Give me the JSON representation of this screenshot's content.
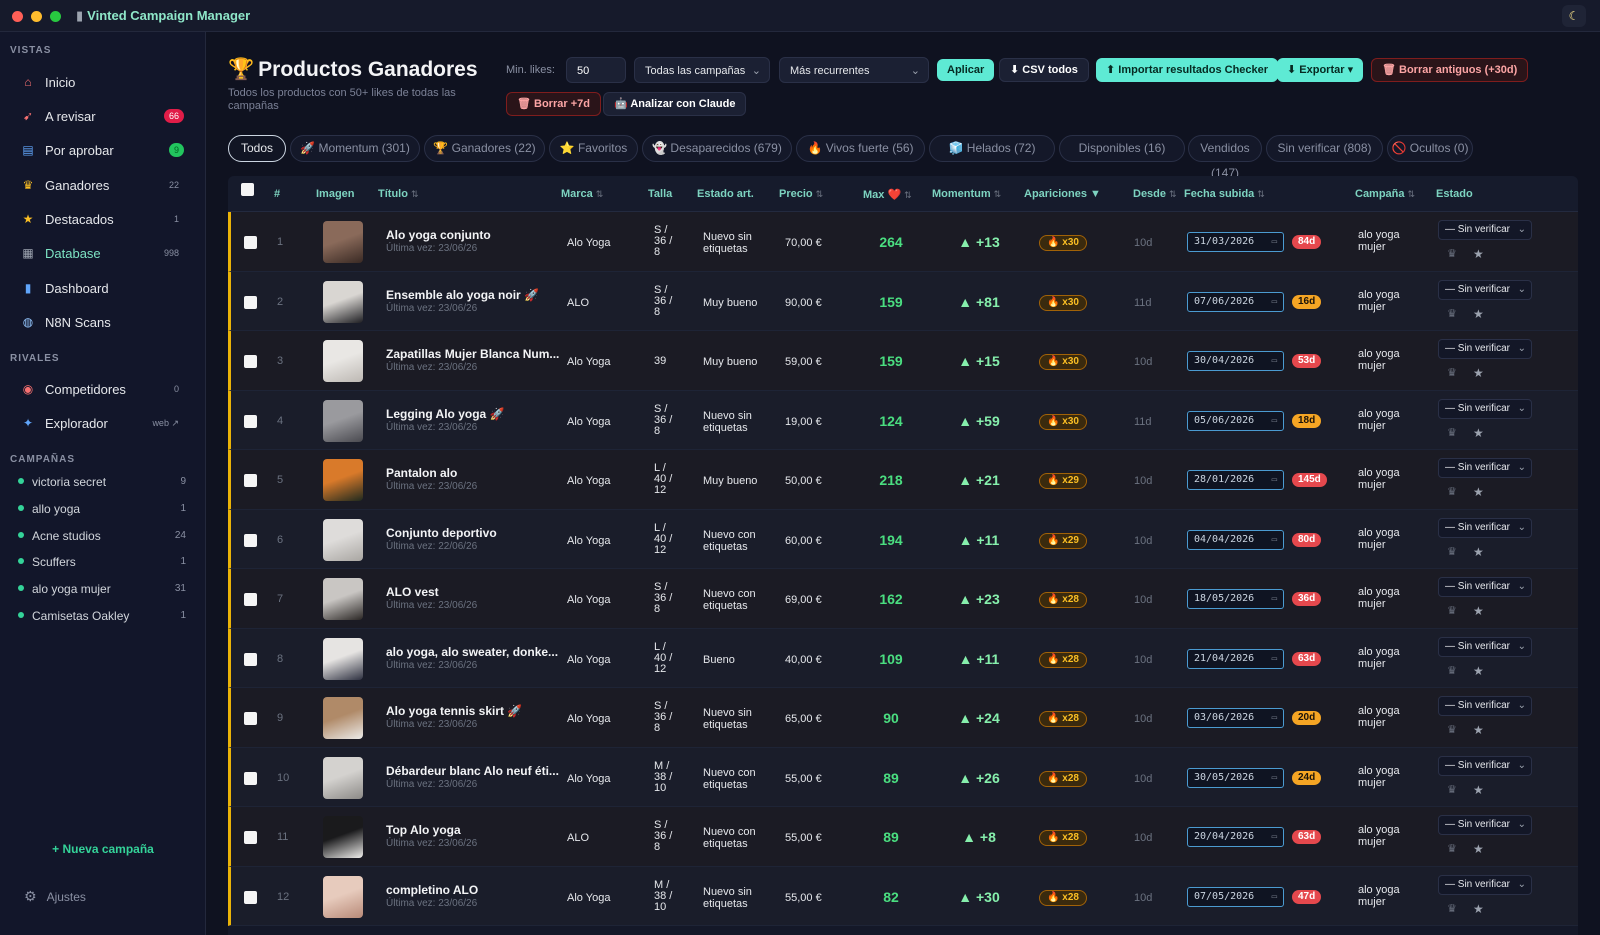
{
  "window": {
    "title": "Vinted Campaign Manager",
    "title_icon": "chart-icon",
    "theme_icon": "moon-icon"
  },
  "sidebar": {
    "sections": {
      "views": "VISTAS",
      "rivals": "RIVALES",
      "campaigns": "CAMPAÑAS"
    },
    "nav": [
      {
        "label": "Inicio",
        "icon": "home-icon",
        "count": ""
      },
      {
        "label": "A revisar",
        "icon": "rocket-icon",
        "count": "66",
        "badge": "red"
      },
      {
        "label": "Por aprobar",
        "icon": "inbox-icon",
        "count": "9",
        "badge": "green"
      },
      {
        "label": "Ganadores",
        "icon": "trophy-icon",
        "count": "22"
      },
      {
        "label": "Destacados",
        "icon": "star-icon",
        "count": "1"
      },
      {
        "label": "Database",
        "icon": "database-icon",
        "count": "998",
        "active": true
      },
      {
        "label": "Dashboard",
        "icon": "chart-icon",
        "count": ""
      },
      {
        "label": "N8N Scans",
        "icon": "globe-icon",
        "count": ""
      }
    ],
    "rivals": [
      {
        "label": "Competidores",
        "icon": "eyes-icon",
        "count": "0"
      },
      {
        "label": "Explorador",
        "icon": "compass-icon",
        "count": "web ↗"
      }
    ],
    "campaigns": [
      {
        "label": "victoria secret",
        "count": "9"
      },
      {
        "label": "allo yoga",
        "count": "1"
      },
      {
        "label": "Acne studios",
        "count": "24"
      },
      {
        "label": "Scuffers",
        "count": "1"
      },
      {
        "label": "alo yoga mujer",
        "count": "31"
      },
      {
        "label": "Camisetas Oakley",
        "count": "1"
      }
    ],
    "new_campaign": "+ Nueva campaña",
    "settings": "Ajustes"
  },
  "header": {
    "title": "Productos Ganadores",
    "subtitle": "Todos los productos con 50+ likes de todas las campañas",
    "min_likes_label": "Min. likes:",
    "min_likes_value": "50",
    "campaign_select": "Todas las campañas",
    "sort_select": "Más recurrentes",
    "apply": "Aplicar",
    "csv": "⬇ CSV todos",
    "import": "⬆ Importar resultados Checker",
    "export": "⬇ Exportar ▾",
    "delete_old": "🗑 Borrar antiguos (+30d)",
    "delete_7d": "🗑 Borrar +7d",
    "analyze": "🤖 Analizar con Claude"
  },
  "tabs": [
    {
      "label": "Todos",
      "active": true
    },
    {
      "label": "🚀 Momentum (301)"
    },
    {
      "label": "🏆 Ganadores (22)"
    },
    {
      "label": "⭐ Favoritos"
    },
    {
      "label": "👻 Desaparecidos (679)"
    },
    {
      "label": "🔥 Vivos fuerte (56)"
    },
    {
      "label": "🧊 Helados (72)"
    },
    {
      "label": "Disponibles (16)"
    },
    {
      "label": "Vendidos (147)"
    },
    {
      "label": "Sin verificar (808)"
    },
    {
      "label": "🚫 Ocultos (0)"
    }
  ],
  "table": {
    "columns": [
      "#",
      "Imagen",
      "Título",
      "Marca",
      "Talla",
      "Estado art.",
      "Precio",
      "Max ❤️",
      "Momentum",
      "Apariciones ▼",
      "Desde",
      "Fecha subida",
      "Campaña",
      "Estado"
    ],
    "rows": [
      {
        "n": "1",
        "title": "Alo yoga conjunto",
        "seen": "Última vez: 23/06/26",
        "brand": "Alo Yoga",
        "size": [
          "S /",
          "36 /",
          "8"
        ],
        "cond": [
          "Nuevo sin",
          "etiquetas"
        ],
        "price": "70,00 €",
        "max": "264",
        "mom": "▲ +13",
        "apar": "🔥 x30",
        "desde": "10d",
        "date": "31/03/2026",
        "age": "84d",
        "age_c": "r",
        "camp": [
          "alo yoga",
          "mujer"
        ],
        "status": "— Sin verificar",
        "thumb": [
          "#8a6a5a",
          "#3a2a24"
        ]
      },
      {
        "n": "2",
        "title": "Ensemble alo yoga noir 🚀",
        "seen": "Última vez: 23/06/26",
        "brand": "ALO",
        "size": [
          "S /",
          "36 /",
          "8"
        ],
        "cond": [
          "Muy bueno"
        ],
        "price": "90,00 €",
        "max": "159",
        "mom": "▲ +81",
        "apar": "🔥 x30",
        "desde": "11d",
        "date": "07/06/2026",
        "age": "16d",
        "age_c": "y",
        "camp": [
          "alo yoga",
          "mujer"
        ],
        "status": "— Sin verificar",
        "thumb": [
          "#d9d6d2",
          "#1e1e22"
        ]
      },
      {
        "n": "3",
        "title": "Zapatillas Mujer Blanca Num...",
        "seen": "Última vez: 23/06/26",
        "brand": "Alo Yoga",
        "size": [
          "39"
        ],
        "cond": [
          "Muy bueno"
        ],
        "price": "59,00 €",
        "max": "159",
        "mom": "▲ +15",
        "apar": "🔥 x30",
        "desde": "10d",
        "date": "30/04/2026",
        "age": "53d",
        "age_c": "r",
        "camp": [
          "alo yoga",
          "mujer"
        ],
        "status": "— Sin verificar",
        "thumb": [
          "#e9e7e4",
          "#bdb8b3"
        ]
      },
      {
        "n": "4",
        "title": "Legging Alo yoga 🚀",
        "seen": "Última vez: 23/06/26",
        "brand": "Alo Yoga",
        "size": [
          "S /",
          "36 /",
          "8"
        ],
        "cond": [
          "Nuevo sin",
          "etiquetas"
        ],
        "price": "19,00 €",
        "max": "124",
        "mom": "▲ +59",
        "apar": "🔥 x30",
        "desde": "11d",
        "date": "05/06/2026",
        "age": "18d",
        "age_c": "y",
        "camp": [
          "alo yoga",
          "mujer"
        ],
        "status": "— Sin verificar",
        "thumb": [
          "#9a9a9e",
          "#4a4a50"
        ]
      },
      {
        "n": "5",
        "title": "Pantalon alo",
        "seen": "Última vez: 23/06/26",
        "brand": "Alo Yoga",
        "size": [
          "L /",
          "40 /",
          "12"
        ],
        "cond": [
          "Muy bueno"
        ],
        "price": "50,00 €",
        "max": "218",
        "mom": "▲ +21",
        "apar": "🔥 x29",
        "desde": "10d",
        "date": "28/01/2026",
        "age": "145d",
        "age_c": "r",
        "camp": [
          "alo yoga",
          "mujer"
        ],
        "status": "— Sin verificar",
        "thumb": [
          "#d97a2a",
          "#1f2a1f"
        ]
      },
      {
        "n": "6",
        "title": "Conjunto deportivo",
        "seen": "Última vez: 22/06/26",
        "brand": "Alo Yoga",
        "size": [
          "L /",
          "40 /",
          "12"
        ],
        "cond": [
          "Nuevo con",
          "etiquetas"
        ],
        "price": "60,00 €",
        "max": "194",
        "mom": "▲ +11",
        "apar": "🔥 x29",
        "desde": "10d",
        "date": "04/04/2026",
        "age": "80d",
        "age_c": "r",
        "camp": [
          "alo yoga",
          "mujer"
        ],
        "status": "— Sin verificar",
        "thumb": [
          "#dedcda",
          "#a9a6a2"
        ]
      },
      {
        "n": "7",
        "title": "ALO vest",
        "seen": "Última vez: 23/06/26",
        "brand": "Alo Yoga",
        "size": [
          "S /",
          "36 /",
          "8"
        ],
        "cond": [
          "Nuevo con",
          "etiquetas"
        ],
        "price": "69,00 €",
        "max": "162",
        "mom": "▲ +23",
        "apar": "🔥 x28",
        "desde": "10d",
        "date": "18/05/2026",
        "age": "36d",
        "age_c": "r",
        "camp": [
          "alo yoga",
          "mujer"
        ],
        "status": "— Sin verificar",
        "thumb": [
          "#c9c6c3",
          "#2a2624"
        ]
      },
      {
        "n": "8",
        "title": "alo yoga, alo sweater, donke...",
        "seen": "Última vez: 23/06/26",
        "brand": "Alo Yoga",
        "size": [
          "L /",
          "40 /",
          "12"
        ],
        "cond": [
          "Bueno"
        ],
        "price": "40,00 €",
        "max": "109",
        "mom": "▲ +11",
        "apar": "🔥 x28",
        "desde": "10d",
        "date": "21/04/2026",
        "age": "63d",
        "age_c": "r",
        "camp": [
          "alo yoga",
          "mujer"
        ],
        "status": "— Sin verificar",
        "thumb": [
          "#e6e4e2",
          "#2d3040"
        ]
      },
      {
        "n": "9",
        "title": "Alo yoga tennis skirt 🚀",
        "seen": "Última vez: 23/06/26",
        "brand": "Alo Yoga",
        "size": [
          "S /",
          "36 /",
          "8"
        ],
        "cond": [
          "Nuevo sin",
          "etiquetas"
        ],
        "price": "65,00 €",
        "max": "90",
        "mom": "▲ +24",
        "apar": "🔥 x28",
        "desde": "10d",
        "date": "03/06/2026",
        "age": "20d",
        "age_c": "y",
        "camp": [
          "alo yoga",
          "mujer"
        ],
        "status": "— Sin verificar",
        "thumb": [
          "#b08a68",
          "#ecebe9"
        ]
      },
      {
        "n": "10",
        "title": "Débardeur blanc Alo neuf éti...",
        "seen": "Última vez: 23/06/26",
        "brand": "Alo Yoga",
        "size": [
          "M /",
          "38 /",
          "10"
        ],
        "cond": [
          "Nuevo con",
          "etiquetas"
        ],
        "price": "55,00 €",
        "max": "89",
        "mom": "▲ +26",
        "apar": "🔥 x28",
        "desde": "10d",
        "date": "30/05/2026",
        "age": "24d",
        "age_c": "y",
        "camp": [
          "alo yoga",
          "mujer"
        ],
        "status": "— Sin verificar",
        "thumb": [
          "#d4d2cf",
          "#8c8a87"
        ]
      },
      {
        "n": "11",
        "title": "Top Alo yoga",
        "seen": "Última vez: 23/06/26",
        "brand": "ALO",
        "size": [
          "S /",
          "36 /",
          "8"
        ],
        "cond": [
          "Nuevo con",
          "etiquetas"
        ],
        "price": "55,00 €",
        "max": "89",
        "mom": "▲ +8",
        "apar": "🔥 x28",
        "desde": "10d",
        "date": "20/04/2026",
        "age": "63d",
        "age_c": "r",
        "camp": [
          "alo yoga",
          "mujer"
        ],
        "status": "— Sin verificar",
        "thumb": [
          "#1a1a1c",
          "#f0efed"
        ]
      },
      {
        "n": "12",
        "title": "completino ALO",
        "seen": "Última vez: 23/06/26",
        "brand": "Alo Yoga",
        "size": [
          "M /",
          "38 /",
          "10"
        ],
        "cond": [
          "Nuevo sin",
          "etiquetas"
        ],
        "price": "55,00 €",
        "max": "82",
        "mom": "▲ +30",
        "apar": "🔥 x28",
        "desde": "10d",
        "date": "07/05/2026",
        "age": "47d",
        "age_c": "r",
        "camp": [
          "alo yoga",
          "mujer"
        ],
        "status": "— Sin verificar",
        "thumb": [
          "#e7cbbd",
          "#b88a78"
        ]
      }
    ]
  },
  "colors": {
    "accent": "#5eead4",
    "highlight_border": "#eab308",
    "max_value": "#4ade80",
    "danger": "#e5484d",
    "warning": "#f5a524"
  }
}
